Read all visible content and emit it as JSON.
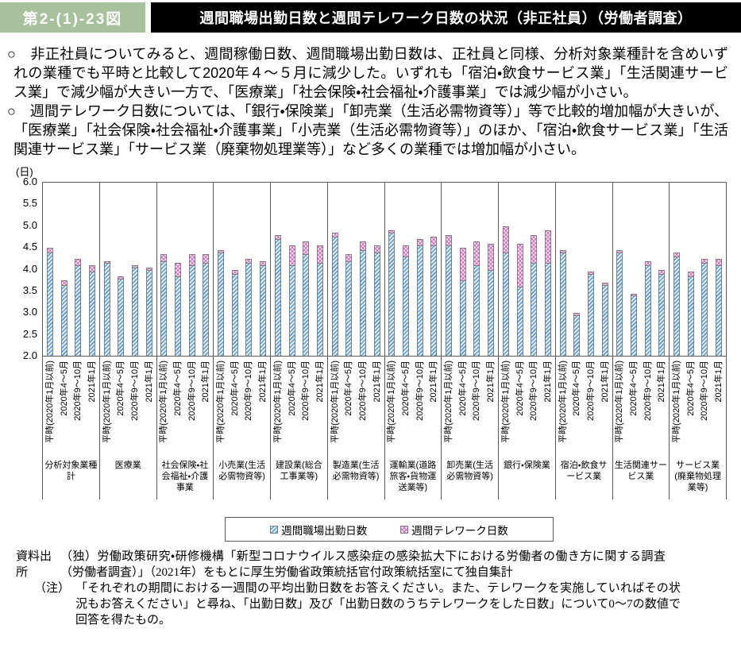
{
  "header": {
    "figure_label": "第2-(1)-23図",
    "title": "週間職場出勤日数と週間テレワーク日数の状況（非正社員）（労働者調査）"
  },
  "bullets_marker": "○　",
  "bullets": [
    "非正社員についてみると、週間稼働日数、週間職場出勤日数は、正社員と同様、分析対象業種計を含めいずれの業種でも平時と比較して2020年４～５月に減少した。いずれも「宿泊・飲食サービス業」「生活関連サービス業」で減少幅が大きい一方で、「医療業」「社会保険・社会福祉・介護事業」では減少幅が小さい。",
    "週間テレワーク日数については、「銀行・保険業」「卸売業（生活必需物資等）」等で比較的増加幅が大きいが、「医療業」「社会保険・社会福祉・介護事業」「小売業（生活必需物資等）」のほか、「宿泊・飲食サービス業」「生活関連サービス業」「サービス業（廃棄物処理業等）」など多くの業種では増加幅が小さい。"
  ],
  "chart_data": {
    "type": "bar",
    "stacked": true,
    "unit_label": "(日)",
    "ylabel": "(日)",
    "xlabel": "",
    "ylim": [
      2.0,
      6.0
    ],
    "yticks": [
      "6.0",
      "5.5",
      "5.0",
      "4.5",
      "4.0",
      "3.5",
      "3.0",
      "2.5",
      "2.0"
    ],
    "grid": false,
    "legend_position": "bottom",
    "periods": [
      "平時(2020年1月以前)",
      "2020年4～5月",
      "2020年9～10月",
      "2021年1月"
    ],
    "legend": [
      "週間職場出勤日数",
      "週間テレワーク日数"
    ],
    "series_note": "bars are stacked: 出勤日数 (blue hatch, from axis base 2.0) + テレワーク日数 (pink crosshatch cap)",
    "groups": [
      {
        "industry": "分析対象業種計",
        "shukkin": [
          4.4,
          3.65,
          4.1,
          3.95
        ],
        "telework": [
          0.1,
          0.1,
          0.15,
          0.15
        ]
      },
      {
        "industry": "医療業",
        "shukkin": [
          4.15,
          3.8,
          4.05,
          4.0
        ],
        "telework": [
          0.05,
          0.05,
          0.05,
          0.05
        ]
      },
      {
        "industry": "社会保険・社会福祉・介護事業",
        "shukkin": [
          4.2,
          3.85,
          4.1,
          4.15
        ],
        "telework": [
          0.15,
          0.3,
          0.25,
          0.2
        ]
      },
      {
        "industry": "小売業(生活必需物資等)",
        "shukkin": [
          4.4,
          3.9,
          4.15,
          4.1
        ],
        "telework": [
          0.05,
          0.1,
          0.1,
          0.1
        ]
      },
      {
        "industry": "建設業(総合工事業等)",
        "shukkin": [
          4.7,
          4.1,
          4.35,
          4.15
        ],
        "telework": [
          0.1,
          0.45,
          0.3,
          0.4
        ]
      },
      {
        "industry": "製造業(生活必需物資等)",
        "shukkin": [
          4.75,
          4.2,
          4.45,
          4.4
        ],
        "telework": [
          0.1,
          0.15,
          0.2,
          0.15
        ]
      },
      {
        "industry": "運輸業(道路旅客・貨物運送業等)",
        "shukkin": [
          4.85,
          4.3,
          4.55,
          4.55
        ],
        "telework": [
          0.05,
          0.25,
          0.15,
          0.2
        ]
      },
      {
        "industry": "卸売業(生活必需物資等)",
        "shukkin": [
          4.55,
          3.75,
          4.1,
          4.0
        ],
        "telework": [
          0.25,
          0.75,
          0.55,
          0.6
        ]
      },
      {
        "industry": "銀行・保険業",
        "shukkin": [
          4.4,
          3.6,
          4.15,
          4.15
        ],
        "telework": [
          0.6,
          1.0,
          0.65,
          0.75
        ]
      },
      {
        "industry": "宿泊・飲食サービス業",
        "shukkin": [
          4.4,
          2.95,
          3.9,
          3.65
        ],
        "telework": [
          0.05,
          0.05,
          0.05,
          0.05
        ]
      },
      {
        "industry": "生活関連サービス業",
        "shukkin": [
          4.4,
          3.4,
          4.1,
          3.9
        ],
        "telework": [
          0.05,
          0.05,
          0.1,
          0.1
        ]
      },
      {
        "industry": "サービス業(廃棄物処理業等)",
        "shukkin": [
          4.3,
          3.85,
          4.15,
          4.1
        ],
        "telework": [
          0.1,
          0.1,
          0.1,
          0.15
        ]
      }
    ]
  },
  "footer": {
    "source_label": "資料出所",
    "source_text": "（独）労働政策研究・研修機構「新型コロナウイルス感染症の感染拡大下における労働者の働き方に関する調査（労働者調査）」（2021年）をもとに厚生労働省政策統括官付政策統括室にて独自集計",
    "note_label": "（注）",
    "note_text": "「それぞれの期間における一週間の平均出勤日数をお答えください。また、テレワークを実施していればその状況もお答えください」と尋ね、「出勤日数」及び「出勤日数のうちテレワークをした日数」について0～7の数値で回答を得たもの。"
  },
  "colors": {
    "header_green": "#a6c19c",
    "header_black": "#000000",
    "attendance_hatch": "#5b9bd5",
    "attendance_fill": "#dcebf8",
    "telework_hatch": "#d86ec7",
    "telework_fill": "#fbdff3",
    "axis": "#595959",
    "bar_border": "#7f7f7f"
  }
}
